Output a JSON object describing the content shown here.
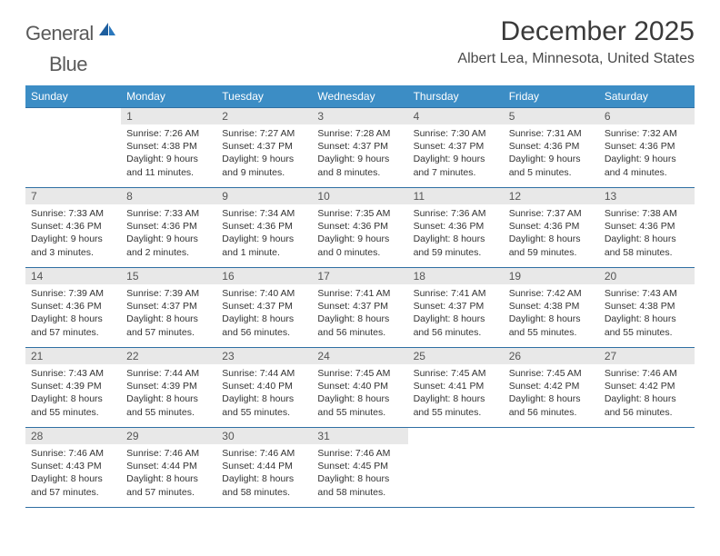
{
  "brand": {
    "word1": "General",
    "word2": "Blue"
  },
  "title": "December 2025",
  "location": "Albert Lea, Minnesota, United States",
  "colors": {
    "header_bg": "#3c8dc5",
    "header_fg": "#ffffff",
    "daynum_bg": "#e8e8e8",
    "rule": "#2f6fa3",
    "logo_gray": "#5a5a5a",
    "logo_blue": "#2b78bd",
    "page_bg": "#ffffff"
  },
  "typography": {
    "title_fontsize": 30,
    "location_fontsize": 16,
    "header_fontsize": 12,
    "daynum_fontsize": 12,
    "body_fontsize": 10.5
  },
  "weekday_headers": [
    "Sunday",
    "Monday",
    "Tuesday",
    "Wednesday",
    "Thursday",
    "Friday",
    "Saturday"
  ],
  "weeks": [
    [
      {
        "num": "",
        "sunrise": "",
        "sunset": "",
        "daylight": "",
        "empty": true
      },
      {
        "num": "1",
        "sunrise": "Sunrise: 7:26 AM",
        "sunset": "Sunset: 4:38 PM",
        "daylight": "Daylight: 9 hours and 11 minutes."
      },
      {
        "num": "2",
        "sunrise": "Sunrise: 7:27 AM",
        "sunset": "Sunset: 4:37 PM",
        "daylight": "Daylight: 9 hours and 9 minutes."
      },
      {
        "num": "3",
        "sunrise": "Sunrise: 7:28 AM",
        "sunset": "Sunset: 4:37 PM",
        "daylight": "Daylight: 9 hours and 8 minutes."
      },
      {
        "num": "4",
        "sunrise": "Sunrise: 7:30 AM",
        "sunset": "Sunset: 4:37 PM",
        "daylight": "Daylight: 9 hours and 7 minutes."
      },
      {
        "num": "5",
        "sunrise": "Sunrise: 7:31 AM",
        "sunset": "Sunset: 4:36 PM",
        "daylight": "Daylight: 9 hours and 5 minutes."
      },
      {
        "num": "6",
        "sunrise": "Sunrise: 7:32 AM",
        "sunset": "Sunset: 4:36 PM",
        "daylight": "Daylight: 9 hours and 4 minutes."
      }
    ],
    [
      {
        "num": "7",
        "sunrise": "Sunrise: 7:33 AM",
        "sunset": "Sunset: 4:36 PM",
        "daylight": "Daylight: 9 hours and 3 minutes."
      },
      {
        "num": "8",
        "sunrise": "Sunrise: 7:33 AM",
        "sunset": "Sunset: 4:36 PM",
        "daylight": "Daylight: 9 hours and 2 minutes."
      },
      {
        "num": "9",
        "sunrise": "Sunrise: 7:34 AM",
        "sunset": "Sunset: 4:36 PM",
        "daylight": "Daylight: 9 hours and 1 minute."
      },
      {
        "num": "10",
        "sunrise": "Sunrise: 7:35 AM",
        "sunset": "Sunset: 4:36 PM",
        "daylight": "Daylight: 9 hours and 0 minutes."
      },
      {
        "num": "11",
        "sunrise": "Sunrise: 7:36 AM",
        "sunset": "Sunset: 4:36 PM",
        "daylight": "Daylight: 8 hours and 59 minutes."
      },
      {
        "num": "12",
        "sunrise": "Sunrise: 7:37 AM",
        "sunset": "Sunset: 4:36 PM",
        "daylight": "Daylight: 8 hours and 59 minutes."
      },
      {
        "num": "13",
        "sunrise": "Sunrise: 7:38 AM",
        "sunset": "Sunset: 4:36 PM",
        "daylight": "Daylight: 8 hours and 58 minutes."
      }
    ],
    [
      {
        "num": "14",
        "sunrise": "Sunrise: 7:39 AM",
        "sunset": "Sunset: 4:36 PM",
        "daylight": "Daylight: 8 hours and 57 minutes."
      },
      {
        "num": "15",
        "sunrise": "Sunrise: 7:39 AM",
        "sunset": "Sunset: 4:37 PM",
        "daylight": "Daylight: 8 hours and 57 minutes."
      },
      {
        "num": "16",
        "sunrise": "Sunrise: 7:40 AM",
        "sunset": "Sunset: 4:37 PM",
        "daylight": "Daylight: 8 hours and 56 minutes."
      },
      {
        "num": "17",
        "sunrise": "Sunrise: 7:41 AM",
        "sunset": "Sunset: 4:37 PM",
        "daylight": "Daylight: 8 hours and 56 minutes."
      },
      {
        "num": "18",
        "sunrise": "Sunrise: 7:41 AM",
        "sunset": "Sunset: 4:37 PM",
        "daylight": "Daylight: 8 hours and 56 minutes."
      },
      {
        "num": "19",
        "sunrise": "Sunrise: 7:42 AM",
        "sunset": "Sunset: 4:38 PM",
        "daylight": "Daylight: 8 hours and 55 minutes."
      },
      {
        "num": "20",
        "sunrise": "Sunrise: 7:43 AM",
        "sunset": "Sunset: 4:38 PM",
        "daylight": "Daylight: 8 hours and 55 minutes."
      }
    ],
    [
      {
        "num": "21",
        "sunrise": "Sunrise: 7:43 AM",
        "sunset": "Sunset: 4:39 PM",
        "daylight": "Daylight: 8 hours and 55 minutes."
      },
      {
        "num": "22",
        "sunrise": "Sunrise: 7:44 AM",
        "sunset": "Sunset: 4:39 PM",
        "daylight": "Daylight: 8 hours and 55 minutes."
      },
      {
        "num": "23",
        "sunrise": "Sunrise: 7:44 AM",
        "sunset": "Sunset: 4:40 PM",
        "daylight": "Daylight: 8 hours and 55 minutes."
      },
      {
        "num": "24",
        "sunrise": "Sunrise: 7:45 AM",
        "sunset": "Sunset: 4:40 PM",
        "daylight": "Daylight: 8 hours and 55 minutes."
      },
      {
        "num": "25",
        "sunrise": "Sunrise: 7:45 AM",
        "sunset": "Sunset: 4:41 PM",
        "daylight": "Daylight: 8 hours and 55 minutes."
      },
      {
        "num": "26",
        "sunrise": "Sunrise: 7:45 AM",
        "sunset": "Sunset: 4:42 PM",
        "daylight": "Daylight: 8 hours and 56 minutes."
      },
      {
        "num": "27",
        "sunrise": "Sunrise: 7:46 AM",
        "sunset": "Sunset: 4:42 PM",
        "daylight": "Daylight: 8 hours and 56 minutes."
      }
    ],
    [
      {
        "num": "28",
        "sunrise": "Sunrise: 7:46 AM",
        "sunset": "Sunset: 4:43 PM",
        "daylight": "Daylight: 8 hours and 57 minutes."
      },
      {
        "num": "29",
        "sunrise": "Sunrise: 7:46 AM",
        "sunset": "Sunset: 4:44 PM",
        "daylight": "Daylight: 8 hours and 57 minutes."
      },
      {
        "num": "30",
        "sunrise": "Sunrise: 7:46 AM",
        "sunset": "Sunset: 4:44 PM",
        "daylight": "Daylight: 8 hours and 58 minutes."
      },
      {
        "num": "31",
        "sunrise": "Sunrise: 7:46 AM",
        "sunset": "Sunset: 4:45 PM",
        "daylight": "Daylight: 8 hours and 58 minutes."
      },
      {
        "num": "",
        "sunrise": "",
        "sunset": "",
        "daylight": "",
        "empty": true
      },
      {
        "num": "",
        "sunrise": "",
        "sunset": "",
        "daylight": "",
        "empty": true
      },
      {
        "num": "",
        "sunrise": "",
        "sunset": "",
        "daylight": "",
        "empty": true
      }
    ]
  ]
}
